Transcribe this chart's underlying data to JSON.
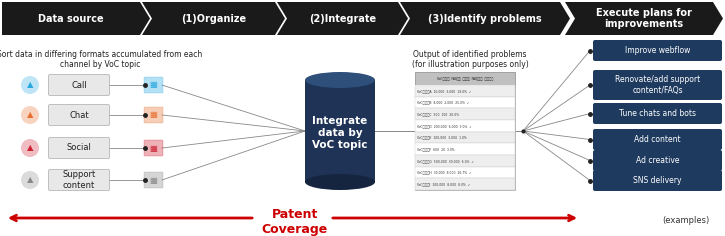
{
  "bg_color": "#ffffff",
  "header_color": "#1a1a1a",
  "header_text_color": "#ffffff",
  "headers": [
    "Data source",
    "(1)Organize",
    "(2)Integrate",
    "(3)Identify problems",
    "Execute plans for\nimprovements"
  ],
  "subtitle_text": "Sort data in differing formats accumulated from each\nchannel by VoC topic",
  "data_sources": [
    "Call",
    "Chat",
    "Social",
    "Support\ncontent"
  ],
  "icon_call_color": "#29a8e0",
  "icon_chat_color": "#e87030",
  "icon_social_color": "#cc2233",
  "icon_support_color": "#888888",
  "cal_icon_colors": [
    "#29a8e0",
    "#e87030",
    "#cc2233",
    "#888888"
  ],
  "ds_box_color": "#e8e8e8",
  "ds_border_color": "#aaaaaa",
  "cylinder_color": "#1e3355",
  "cylinder_top_color": "#2e4f7a",
  "cylinder_bottom_color": "#152540",
  "cylinder_text": "Integrate\ndata by\nVoC topic",
  "cylinder_text_color": "#ffffff",
  "output_label": "Output of identified problems\n(for illustration purposes only)",
  "table_header_color": "#c0c0c0",
  "table_row_color1": "#ffffff",
  "table_row_color2": "#eeeeee",
  "action_boxes": [
    "Improve webflow",
    "Renovate/add support\ncontent/FAQs",
    "Tune chats and bots",
    "Add content",
    "Ad creative",
    "SNS delivery"
  ],
  "action_box_color": "#1e3a5f",
  "action_box_text_color": "#ffffff",
  "patent_text": "Patent\nCoverage",
  "patent_color": "#cc0000",
  "examples_text": "(examples)",
  "line_color": "#888888",
  "dot_color": "#222222"
}
